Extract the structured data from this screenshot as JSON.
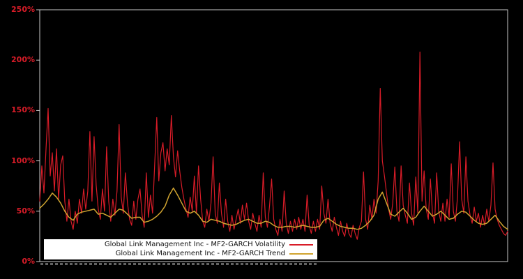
{
  "window": {
    "background_color": "#000000"
  },
  "chart_data": {
    "type": "line",
    "title": "",
    "xlabel": "",
    "ylabel": "",
    "ylim": [
      0,
      250
    ],
    "y_unit": "percent",
    "grid": false,
    "x_axis_labels_visible": false,
    "legend_position": "bottom-left",
    "axis_label_color": "#d81c28",
    "frame_color": "#c8c8c8",
    "y_ticks": [
      {
        "value": 0,
        "label": "0%"
      },
      {
        "value": 50,
        "label": "50%"
      },
      {
        "value": 100,
        "label": "100%"
      },
      {
        "value": 150,
        "label": "150%"
      },
      {
        "value": 200,
        "label": "200%"
      },
      {
        "value": 250,
        "label": "250%"
      }
    ],
    "series": [
      {
        "name": "Global Link Management Inc - MF2-GARCH Volatility",
        "color": "#d81c28",
        "stroke_width": 1.2,
        "values": [
          60,
          95,
          68,
          112,
          152,
          85,
          108,
          70,
          112,
          62,
          96,
          105,
          60,
          40,
          62,
          40,
          32,
          50,
          38,
          62,
          48,
          72,
          52,
          70,
          129,
          60,
          124,
          76,
          52,
          42,
          72,
          50,
          114,
          60,
          40,
          62,
          46,
          70,
          136,
          64,
          48,
          88,
          58,
          42,
          36,
          60,
          42,
          62,
          72,
          46,
          34,
          88,
          44,
          66,
          48,
          96,
          143,
          80,
          108,
          118,
          90,
          112,
          96,
          145,
          104,
          84,
          110,
          90,
          74,
          62,
          52,
          44,
          64,
          50,
          85,
          48,
          95,
          62,
          40,
          34,
          52,
          40,
          58,
          104,
          48,
          38,
          78,
          48,
          34,
          62,
          40,
          30,
          46,
          32,
          42,
          52,
          38,
          56,
          42,
          58,
          40,
          32,
          48,
          38,
          30,
          46,
          34,
          88,
          44,
          34,
          55,
          82,
          42,
          32,
          26,
          42,
          30,
          70,
          38,
          28,
          40,
          30,
          42,
          32,
          44,
          32,
          42,
          30,
          66,
          36,
          28,
          40,
          30,
          42,
          32,
          75,
          48,
          38,
          62,
          38,
          30,
          44,
          34,
          26,
          40,
          30,
          25,
          38,
          28,
          24,
          36,
          28,
          22,
          34,
          40,
          89,
          42,
          32,
          56,
          42,
          62,
          48,
          80,
          172,
          100,
          85,
          68,
          52,
          42,
          58,
          94,
          50,
          40,
          95,
          56,
          46,
          38,
          78,
          48,
          36,
          84,
          48,
          208,
          60,
          90,
          52,
          42,
          82,
          48,
          38,
          88,
          50,
          40,
          58,
          40,
          62,
          44,
          97,
          50,
          40,
          64,
          119,
          62,
          48,
          104,
          60,
          46,
          38,
          54,
          40,
          48,
          34,
          46,
          36,
          52,
          40,
          56,
          98,
          52,
          42,
          36,
          32,
          28,
          26,
          30
        ]
      },
      {
        "name": "Global Link Management Inc - MF2-GARCH Trend",
        "color": "#d0a430",
        "stroke_width": 1.5,
        "values": [
          53,
          57,
          62,
          68,
          64,
          58,
          50,
          44,
          41,
          47,
          49,
          50,
          51,
          52,
          47,
          48,
          46,
          44,
          48,
          52,
          51,
          47,
          43,
          44,
          44,
          39,
          40,
          42,
          45,
          49,
          55,
          66,
          73,
          66,
          58,
          50,
          48,
          50,
          46,
          40,
          39,
          42,
          41,
          40,
          38,
          37,
          36,
          37,
          39,
          41,
          42,
          40,
          38,
          38,
          40,
          39,
          36,
          34,
          34,
          35,
          35,
          34,
          35,
          36,
          35,
          34,
          34,
          35,
          41,
          43,
          40,
          37,
          35,
          34,
          33,
          33,
          32,
          33,
          36,
          40,
          46,
          62,
          69,
          58,
          47,
          45,
          49,
          53,
          48,
          42,
          44,
          50,
          55,
          50,
          45,
          47,
          50,
          46,
          42,
          43,
          47,
          50,
          49,
          45,
          41,
          38,
          37,
          38,
          42,
          46,
          40,
          35,
          32
        ]
      }
    ]
  },
  "legend": {
    "row1_label": "Global Link Management Inc - MF2-GARCH Volatility",
    "row2_label": "Global Link Management Inc - MF2-GARCH Trend"
  }
}
